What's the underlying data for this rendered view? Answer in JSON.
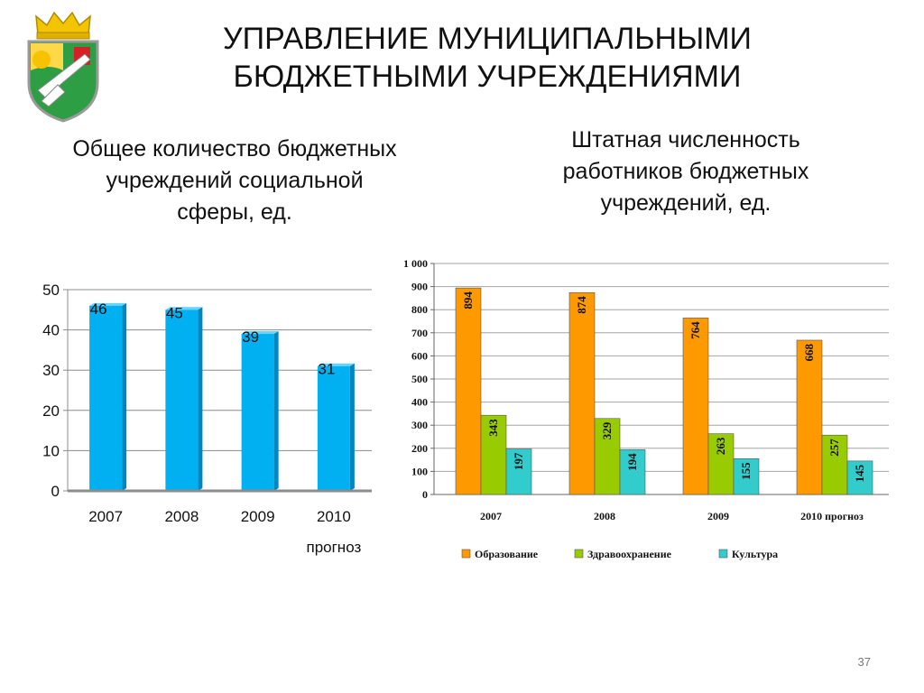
{
  "title": "УПРАВЛЕНИЕ МУНИЦИПАЛЬНЫМИ БЮДЖЕТНЫМИ УЧРЕЖДЕНИЯМИ",
  "left_subtitle": "Общее количество бюджетных учреждений социальной сферы, ед.",
  "right_subtitle": "Штатная численность работников бюджетных учреждений, ед.",
  "slide_number": "37",
  "colors": {
    "blue_bar": "#00B0F0",
    "orange": "#FF9900",
    "green": "#99CC00",
    "teal": "#33CCCC"
  },
  "chart_data": [
    {
      "type": "bar",
      "categories": [
        "2007",
        "2008",
        "2009",
        "2010 прогноз"
      ],
      "values": [
        46,
        45,
        39,
        31
      ],
      "ylim": [
        0,
        50
      ],
      "yticks": [
        "0",
        "10",
        "20",
        "30",
        "40",
        "50"
      ],
      "grid": true,
      "legend": "none"
    },
    {
      "type": "bar",
      "categories": [
        "2007",
        "2008",
        "2009",
        "2010 прогноз"
      ],
      "series": [
        {
          "name": "Образование",
          "values": [
            894,
            874,
            764,
            668
          ]
        },
        {
          "name": "Здравоохранение",
          "values": [
            343,
            329,
            263,
            257
          ]
        },
        {
          "name": "Культура",
          "values": [
            197,
            194,
            155,
            145
          ]
        }
      ],
      "ylim": [
        0,
        1000
      ],
      "yticks": [
        "0",
        "100",
        "200",
        "300",
        "400",
        "500",
        "600",
        "700",
        "800",
        "900",
        "1 000"
      ],
      "grid": true,
      "legend": "bottom"
    }
  ]
}
